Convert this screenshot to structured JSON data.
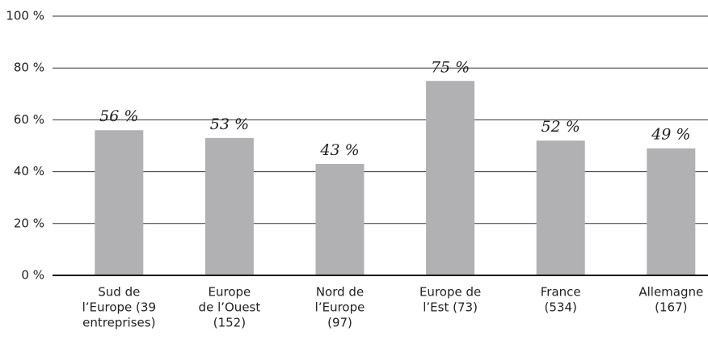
{
  "chart_data": {
    "type": "bar",
    "categories": [
      [
        "Sud de",
        "l’Europe (39",
        "entreprises)"
      ],
      [
        "Europe",
        "de l’Ouest",
        "(152)"
      ],
      [
        "Nord de",
        "l’Europe",
        "(97)"
      ],
      [
        "Europe de",
        "l’Est (73)"
      ],
      [
        "France",
        "(534)"
      ],
      [
        "Allemagne",
        "(167)"
      ]
    ],
    "values": [
      56,
      53,
      43,
      75,
      52,
      49
    ],
    "value_labels": [
      "56 %",
      "53 %",
      "43 %",
      "75 %",
      "52 %",
      "49 %"
    ],
    "color": "#b1b1b3",
    "ylim": [
      0,
      100
    ],
    "yticks": [
      {
        "value": 0,
        "label": "0 %"
      },
      {
        "value": 20,
        "label": "20 %"
      },
      {
        "value": 40,
        "label": "40 %"
      },
      {
        "value": 60,
        "label": "60 %"
      },
      {
        "value": 80,
        "label": "80 %"
      },
      {
        "value": 100,
        "label": "100 %"
      }
    ],
    "grid": true
  }
}
